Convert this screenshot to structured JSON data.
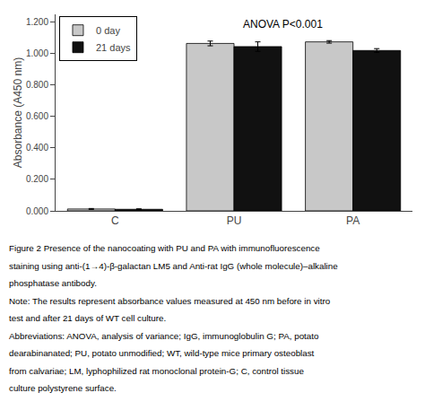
{
  "chart_data": {
    "type": "bar",
    "categories": [
      "C",
      "PU",
      "PA"
    ],
    "series": [
      {
        "name": "0 day",
        "color": "#c8c8c8",
        "values": [
          0.012,
          1.065,
          1.075
        ],
        "errors": [
          0.003,
          0.015,
          0.008
        ]
      },
      {
        "name": "21 days",
        "color": "#111111",
        "values": [
          0.01,
          1.045,
          1.02
        ],
        "errors": [
          0.003,
          0.03,
          0.012
        ]
      }
    ],
    "ylabel": "Absorbance (A450 nm)",
    "ylim": [
      0.0,
      1.25
    ],
    "yticks": [
      {
        "value": 0.0,
        "label": "0.000"
      },
      {
        "value": 0.2,
        "label": "0.200"
      },
      {
        "value": 0.4,
        "label": "0.400"
      },
      {
        "value": 0.6,
        "label": "0.600"
      },
      {
        "value": 0.8,
        "label": "0.800"
      },
      {
        "value": 1.0,
        "label": "1.000"
      },
      {
        "value": 1.2,
        "label": "1.200"
      }
    ],
    "grid": false,
    "legend": "upper left",
    "annotations": [
      "ANOVA P<0.001"
    ],
    "caption": [
      "Figure 2 Presence of the nanocoating with PU and PA with immunofluorescence",
      "staining using anti-(1→4)-β-galactan LM5 and Anti-rat IgG (whole molecule)–alkaline",
      "phosphatase antibody.",
      "Note: The results represent absorbance values measured at 450 nm before in vitro",
      "test and after 21 days of WT cell culture.",
      "Abbreviations: ANOVA, analysis of variance; IgG, immunoglobulin G; PA, potato",
      "dearabinanated; PU, potato unmodified; WT, wild-type mice primary osteoblast",
      "from calvariae; LM, lyphophilized rat monoclonal protein-G; C, control tissue",
      "culture polystyrene surface."
    ]
  }
}
